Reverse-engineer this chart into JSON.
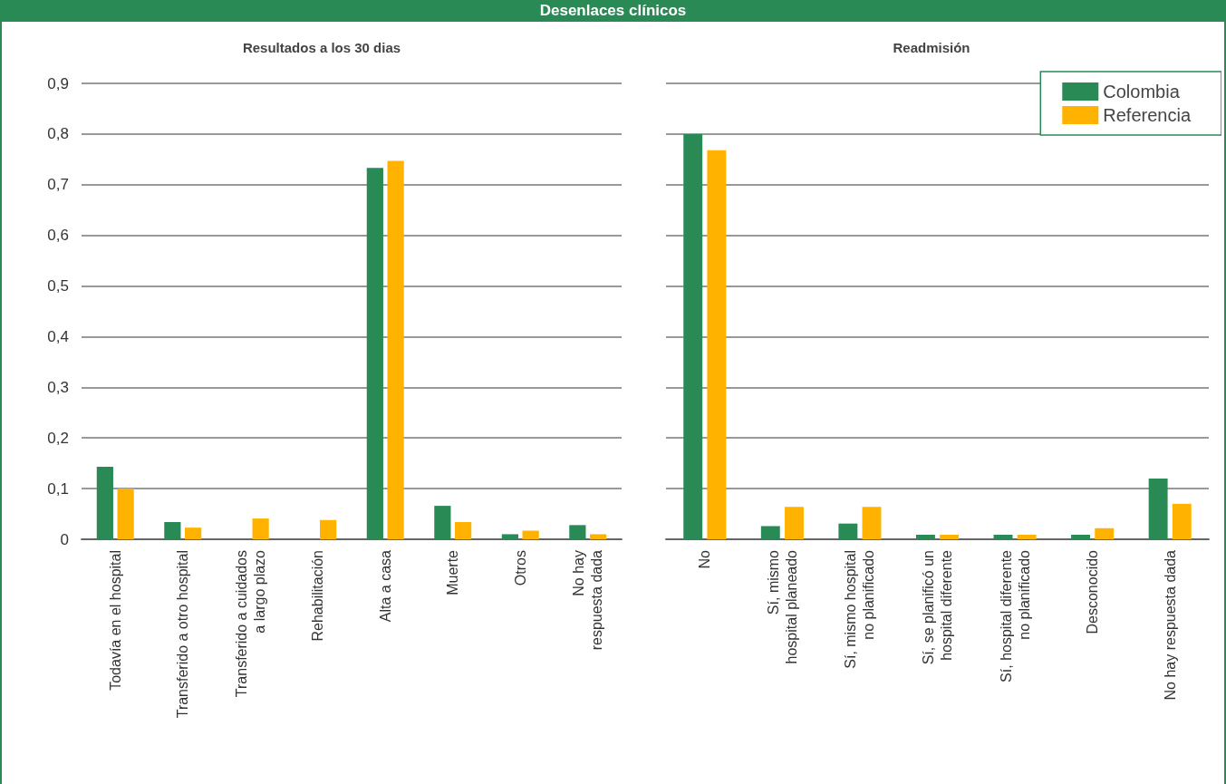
{
  "chart_data": [
    {
      "type": "bar",
      "title": "Resultados a los 30 dias",
      "annotations": [
        "Desenlaces clínicos"
      ],
      "categories": [
        "Todavía en el hospital",
        "Transferido a otro hospital",
        "Transferido a cuidados\na largo plazo",
        "Rehabilitación",
        "Alta a casa",
        "Muerte",
        "Otros",
        "No hay\nrespuesta dada"
      ],
      "series": [
        {
          "color": "#2a8a55",
          "values": [
            0.143,
            0.034,
            0,
            0,
            0.733,
            0.066,
            0.01,
            0.028
          ]
        },
        {
          "color": "#ffb300",
          "values": [
            0.1,
            0.023,
            0.041,
            0.038,
            0.747,
            0.034,
            0.017,
            0.01
          ]
        }
      ],
      "ylim": [
        0,
        0.9
      ],
      "yticks": [
        0,
        {
          "value": 0.1,
          "label": "0,1"
        },
        {
          "value": 0.2,
          "label": "0,2"
        },
        {
          "value": 0.3,
          "label": "0,3"
        },
        {
          "value": 0.4,
          "label": "0,4"
        },
        {
          "value": 0.5,
          "label": "0,5"
        },
        {
          "value": 0.6,
          "label": "0,6"
        },
        {
          "value": 0.7,
          "label": "0,7"
        },
        {
          "value": 0.8,
          "label": "0,8"
        },
        {
          "value": 0.9,
          "label": "0,9"
        }
      ],
      "grid": "y",
      "legend": false
    },
    {
      "type": "bar",
      "title": "Readmisión",
      "categories": [
        "No",
        "Sí, mismo\nhospital planeado",
        "Sí, mismo hospital\nno planificado",
        "Sí, se planificó un\nhospital diferente",
        "Sí, hospital diferente\nno planificado",
        "Desconocido",
        "No hay respuesta dada"
      ],
      "series": [
        {
          "name": "Colombia",
          "color": "#2a8a55",
          "values": [
            0.8,
            0.026,
            0.031,
            0.009,
            0.009,
            0.009,
            0.12
          ]
        },
        {
          "name": "Referencia",
          "color": "#ffb300",
          "values": [
            0.768,
            0.064,
            0.064,
            0.009,
            0.009,
            0.022,
            0.07
          ]
        }
      ],
      "ylim": [
        0,
        0.9
      ],
      "yticks": [
        {
          "value": 0,
          "label": null
        },
        {
          "value": 0.1,
          "label": null
        },
        {
          "value": 0.2,
          "label": null
        },
        {
          "value": 0.3,
          "label": null
        },
        {
          "value": 0.4,
          "label": null
        },
        {
          "value": 0.5,
          "label": null
        },
        {
          "value": 0.6,
          "label": null
        },
        {
          "value": 0.7,
          "label": null
        },
        {
          "value": 0.8,
          "label": null
        },
        {
          "value": 0.9,
          "label": null
        }
      ],
      "grid": "y",
      "legend": "top right",
      "tick_labels": "x"
    }
  ]
}
